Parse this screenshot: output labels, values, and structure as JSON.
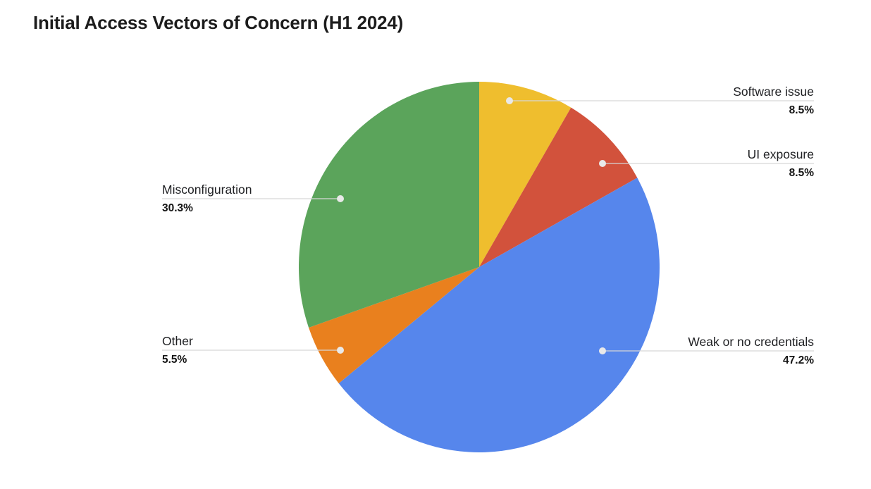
{
  "chart_data": {
    "type": "pie",
    "title": "Initial Access Vectors of Concern (H1 2024)",
    "legend_position": "labeled-callouts",
    "background": "#ffffff",
    "callout_line_color": "#d6d6d6",
    "callout_dot_color": "#e9e9e9",
    "start_angle_deg": 0,
    "direction": "clockwise",
    "slices": [
      {
        "label": "Software issue",
        "value": 8.5,
        "value_label": "8.5%",
        "color": "#efbe2e"
      },
      {
        "label": "UI exposure",
        "value": 8.5,
        "value_label": "8.5%",
        "color": "#d2523c"
      },
      {
        "label": "Weak or no credentials",
        "value": 47.2,
        "value_label": "47.2%",
        "color": "#5686ec"
      },
      {
        "label": "Other",
        "value": 5.5,
        "value_label": "5.5%",
        "color": "#e9801e"
      },
      {
        "label": "Misconfiguration",
        "value": 30.3,
        "value_label": "30.3%",
        "color": "#5ba45b"
      }
    ]
  }
}
